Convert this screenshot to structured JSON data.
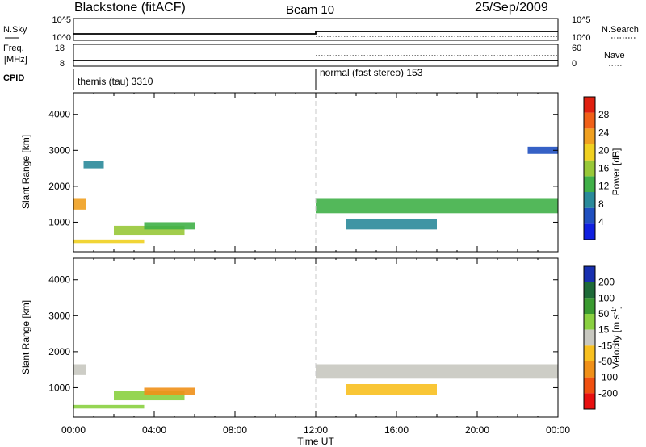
{
  "header": {
    "title": "Blackstone (fitACF)",
    "beam": "Beam 10",
    "date": "25/Sep/2009"
  },
  "status_panels": {
    "nsky": {
      "label": "N.Sky",
      "ticks": [
        "10^5",
        "10^0"
      ]
    },
    "nsearch": {
      "label": "N.Search",
      "ticks": [
        "10^5",
        "10^0"
      ]
    },
    "freq": {
      "label_line1": "Freq.",
      "label_line2": "[MHz]",
      "ticks": [
        "18",
        "8"
      ]
    },
    "nave": {
      "label": "Nave",
      "ticks": [
        "60",
        "0"
      ]
    },
    "cpid": {
      "label": "CPID",
      "modes": [
        {
          "name": "themis (tau) 3310",
          "start_hour": 0
        },
        {
          "name": "normal (fast stereo) 153",
          "start_hour": 12
        }
      ]
    }
  },
  "chart_data": [
    {
      "type": "heatmap",
      "panel": "power",
      "xlabel": "",
      "ylabel": "Slant Range [km]",
      "x_range_hours": [
        0,
        24
      ],
      "ylim": [
        180,
        4600
      ],
      "yticks": [
        "1000",
        "2000",
        "3000",
        "4000"
      ],
      "colorbar": {
        "label": "Power [dB]",
        "ticks": [
          "4",
          "8",
          "12",
          "16",
          "20",
          "24",
          "28"
        ],
        "colors": [
          "#1020e0",
          "#2050c0",
          "#2a8a9a",
          "#40b048",
          "#98c838",
          "#f0d020",
          "#f0a020",
          "#f06018",
          "#e02010"
        ]
      },
      "echo_bands": [
        {
          "t_start": 0.0,
          "t_end": 0.6,
          "range_km": [
            1350,
            1650
          ],
          "power_db": 24
        },
        {
          "t_start": 0.0,
          "t_end": 3.5,
          "range_km": [
            420,
            520
          ],
          "power_db": 18
        },
        {
          "t_start": 2.0,
          "t_end": 5.5,
          "range_km": [
            650,
            900
          ],
          "power_db": 16
        },
        {
          "t_start": 3.5,
          "t_end": 6.0,
          "range_km": [
            800,
            1000
          ],
          "power_db": 14
        },
        {
          "t_start": 0.5,
          "t_end": 1.5,
          "range_km": [
            2500,
            2700
          ],
          "power_db": 8
        },
        {
          "t_start": 12.0,
          "t_end": 24.0,
          "range_km": [
            1250,
            1650
          ],
          "power_db": 14
        },
        {
          "t_start": 13.5,
          "t_end": 18.0,
          "range_km": [
            800,
            1100
          ],
          "power_db": 10
        },
        {
          "t_start": 22.5,
          "t_end": 24.0,
          "range_km": [
            2900,
            3100
          ],
          "power_db": 6
        }
      ]
    },
    {
      "type": "heatmap",
      "panel": "velocity",
      "xlabel": "Time UT",
      "ylabel": "Slant Range [km]",
      "x_range_hours": [
        0,
        24
      ],
      "ylim": [
        180,
        4600
      ],
      "yticks": [
        "1000",
        "2000",
        "3000",
        "4000"
      ],
      "xticks": [
        "00:00",
        "04:00",
        "08:00",
        "12:00",
        "16:00",
        "20:00",
        "00:00"
      ],
      "colorbar": {
        "label": "Velocity [m s",
        "unit_exponent": "-1",
        "label_close": "]",
        "ticks": [
          "200",
          "100",
          "50",
          "15",
          "-15",
          "-50",
          "-100",
          "-200"
        ],
        "colors": [
          "#1830b0",
          "#1e6a38",
          "#3a9a30",
          "#8ad040",
          "#c8c8c0",
          "#f8c020",
          "#f09018",
          "#f05010",
          "#e81010"
        ]
      },
      "echo_bands": [
        {
          "t_start": 0.0,
          "t_end": 0.6,
          "range_km": [
            1350,
            1650
          ],
          "velocity_ms": 0
        },
        {
          "t_start": 0.0,
          "t_end": 3.5,
          "range_km": [
            420,
            520
          ],
          "velocity_ms": 40
        },
        {
          "t_start": 2.0,
          "t_end": 5.5,
          "range_km": [
            650,
            900
          ],
          "velocity_ms": 20
        },
        {
          "t_start": 3.5,
          "t_end": 6.0,
          "range_km": [
            800,
            1000
          ],
          "velocity_ms": -60
        },
        {
          "t_start": 12.0,
          "t_end": 24.0,
          "range_km": [
            1250,
            1650
          ],
          "velocity_ms": 0
        },
        {
          "t_start": 13.5,
          "t_end": 18.0,
          "range_km": [
            800,
            1100
          ],
          "velocity_ms": -40
        }
      ]
    }
  ]
}
